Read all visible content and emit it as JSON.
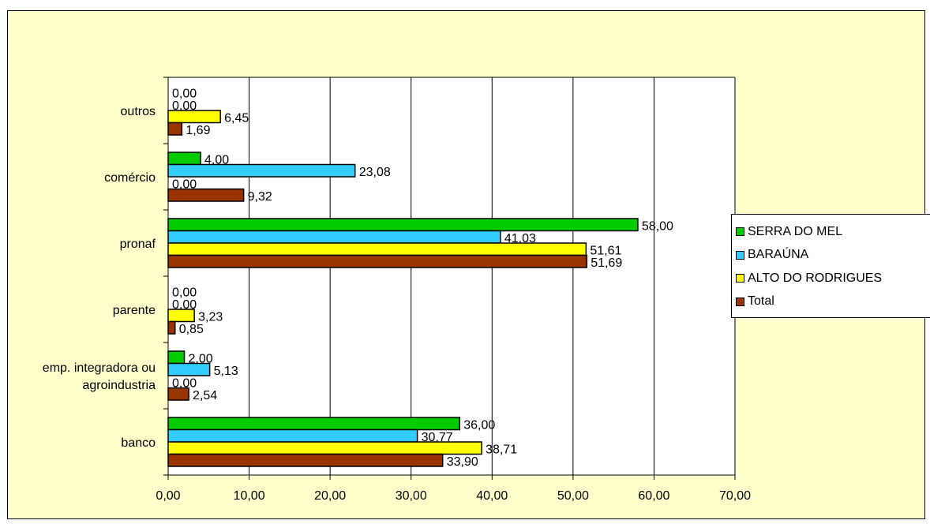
{
  "chart_data": {
    "type": "bar",
    "orientation": "horizontal",
    "categories": [
      "banco",
      "emp. integradora ou agroindustria",
      "parente",
      "pronaf",
      "comércio",
      "outros"
    ],
    "category_label_lines": [
      [
        "banco"
      ],
      [
        "emp. integradora ou",
        "agroindustria"
      ],
      [
        "parente"
      ],
      [
        "pronaf"
      ],
      [
        "comércio"
      ],
      [
        "outros"
      ]
    ],
    "series": [
      {
        "name": "SERRA DO MEL",
        "color": "#00cc00",
        "values": [
          36.0,
          2.0,
          0.0,
          58.0,
          4.0,
          0.0
        ],
        "labels": [
          "36,00",
          "2,00",
          "0,00",
          "58,00",
          "4,00",
          "0,00"
        ]
      },
      {
        "name": "BARAÚNA",
        "color": "#33ccff",
        "values": [
          30.77,
          5.13,
          0.0,
          41.03,
          23.08,
          0.0
        ],
        "labels": [
          "30,77",
          "5,13",
          "0,00",
          "41,03",
          "23,08",
          "0,00"
        ]
      },
      {
        "name": "ALTO DO RODRIGUES",
        "color": "#ffff00",
        "values": [
          38.71,
          0.0,
          3.23,
          51.61,
          0.0,
          6.45
        ],
        "labels": [
          "38,71",
          "0,00",
          "3,23",
          "51,61",
          "0,00",
          "6,45"
        ]
      },
      {
        "name": "Total",
        "color": "#993300",
        "values": [
          33.9,
          2.54,
          0.85,
          51.69,
          9.32,
          1.69
        ],
        "labels": [
          "33,90",
          "2,54",
          "0,85",
          "51,69",
          "9,32",
          "1,69"
        ]
      }
    ],
    "xlim": [
      0,
      70
    ],
    "x_ticks": [
      "0,00",
      "10,00",
      "20,00",
      "30,00",
      "40,00",
      "50,00",
      "60,00",
      "70,00"
    ],
    "grid": "vertical",
    "legend": "right",
    "background_color": "#ffffcc",
    "plot_background_color": "#ffffff"
  }
}
